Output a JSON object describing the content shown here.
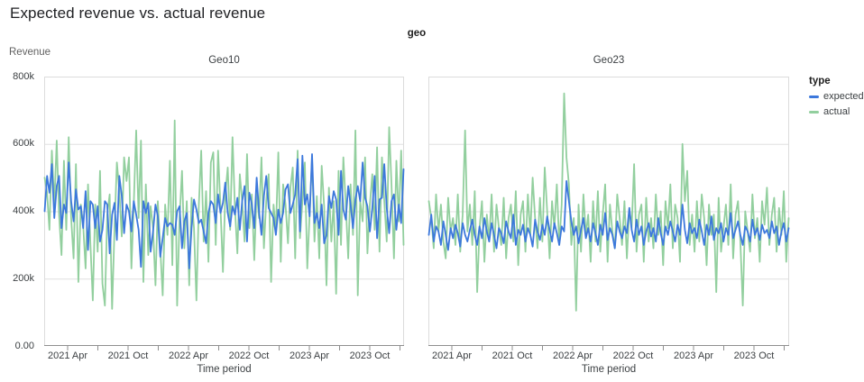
{
  "page": {
    "title": "Expected revenue vs. actual revenue"
  },
  "colors": {
    "expected": "#3c78dc",
    "actual": "#92cf9e",
    "grid": "#e0e0e0",
    "border": "#dcdcdc",
    "axis_line": "#8f8f8f",
    "tick_text": "#3c4043"
  },
  "chart_data": {
    "type": "line",
    "title": "Expected revenue vs. actual revenue",
    "facet_header": "geo",
    "legend_title": "type",
    "legend_position": "right",
    "grid": "horizontal",
    "series_meta": [
      {
        "name": "expected",
        "color": "#3c78dc"
      },
      {
        "name": "actual",
        "color": "#92cf9e"
      }
    ],
    "x": {
      "label": "Time period",
      "start": "2021 Jan",
      "end": "2023 Dec",
      "points_per_series": 150,
      "tick_labels": [
        "2021 Apr",
        "2021 Oct",
        "2022 Apr",
        "2022 Oct",
        "2023 Apr",
        "2023 Oct"
      ],
      "major_tick_months": [
        3,
        9,
        15,
        21,
        27,
        33
      ],
      "minor_tick_months": [
        6,
        12,
        18,
        24,
        30,
        36
      ]
    },
    "y": {
      "label": "Revenue",
      "unit": "thousands",
      "lim": [
        0,
        800
      ],
      "ticks": [
        {
          "v": 0,
          "label": "0.00"
        },
        {
          "v": 200,
          "label": "200k"
        },
        {
          "v": 400,
          "label": "400k"
        },
        {
          "v": 600,
          "label": "600k"
        },
        {
          "v": 800,
          "label": "800k"
        }
      ]
    },
    "facets": [
      {
        "name": "Geo10",
        "series": {
          "expected": [
            400,
            505,
            455,
            540,
            380,
            475,
            505,
            350,
            420,
            395,
            545,
            430,
            370,
            465,
            405,
            415,
            350,
            460,
            285,
            430,
            420,
            350,
            415,
            310,
            345,
            430,
            420,
            275,
            390,
            425,
            315,
            505,
            445,
            335,
            420,
            400,
            340,
            430,
            390,
            345,
            235,
            430,
            395,
            425,
            280,
            340,
            420,
            385,
            265,
            320,
            380,
            355,
            365,
            360,
            330,
            400,
            415,
            290,
            370,
            395,
            230,
            350,
            435,
            405,
            365,
            375,
            340,
            305,
            395,
            430,
            420,
            365,
            450,
            395,
            425,
            485,
            395,
            355,
            415,
            390,
            440,
            345,
            430,
            475,
            310,
            455,
            420,
            350,
            500,
            400,
            330,
            445,
            505,
            410,
            395,
            380,
            330,
            405,
            365,
            395,
            465,
            480,
            395,
            420,
            450,
            555,
            340,
            565,
            420,
            450,
            385,
            570,
            365,
            395,
            350,
            420,
            305,
            330,
            445,
            410,
            460,
            435,
            330,
            520,
            405,
            375,
            475,
            420,
            350,
            435,
            475,
            430,
            545,
            440,
            415,
            340,
            410,
            505,
            320,
            435,
            440,
            540,
            410,
            335,
            430,
            450,
            345,
            420,
            365,
            525
          ],
          "actual": [
            500,
            455,
            345,
            580,
            420,
            610,
            390,
            270,
            550,
            345,
            620,
            380,
            260,
            540,
            190,
            420,
            360,
            230,
            480,
            300,
            135,
            420,
            280,
            520,
            185,
            120,
            390,
            450,
            110,
            350,
            545,
            460,
            325,
            560,
            490,
            560,
            230,
            420,
            640,
            380,
            610,
            190,
            480,
            270,
            415,
            350,
            180,
            430,
            290,
            150,
            420,
            330,
            550,
            240,
            670,
            120,
            380,
            520,
            290,
            430,
            180,
            440,
            350,
            135,
            420,
            580,
            310,
            460,
            250,
            545,
            575,
            300,
            580,
            410,
            220,
            450,
            530,
            345,
            620,
            410,
            275,
            510,
            430,
            310,
            570,
            350,
            450,
            255,
            460,
            380,
            560,
            290,
            430,
            510,
            190,
            420,
            340,
            575,
            250,
            480,
            420,
            305,
            470,
            530,
            260,
            580,
            320,
            430,
            545,
            230,
            390,
            560,
            310,
            445,
            260,
            535,
            415,
            180,
            470,
            310,
            430,
            155,
            520,
            300,
            560,
            420,
            260,
            480,
            330,
            640,
            150,
            430,
            370,
            560,
            275,
            420,
            510,
            345,
            590,
            280,
            560,
            430,
            310,
            650,
            480,
            260,
            550,
            370,
            580,
            300
          ]
        }
      },
      {
        "name": "Geo23",
        "series": {
          "expected": [
            330,
            390,
            310,
            355,
            340,
            300,
            370,
            330,
            285,
            350,
            320,
            360,
            335,
            295,
            365,
            330,
            310,
            345,
            375,
            330,
            300,
            355,
            320,
            380,
            340,
            310,
            365,
            330,
            290,
            350,
            335,
            305,
            370,
            340,
            320,
            390,
            300,
            345,
            330,
            360,
            310,
            350,
            330,
            295,
            375,
            340,
            315,
            360,
            330,
            385,
            345,
            310,
            365,
            335,
            300,
            355,
            340,
            490,
            430,
            370,
            330,
            355,
            305,
            345,
            380,
            320,
            350,
            310,
            365,
            335,
            300,
            360,
            330,
            395,
            315,
            350,
            330,
            290,
            370,
            340,
            320,
            355,
            335,
            410,
            345,
            310,
            375,
            330,
            355,
            300,
            340,
            365,
            325,
            350,
            310,
            380,
            335,
            300,
            355,
            330,
            370,
            340,
            310,
            360,
            330,
            420,
            345,
            305,
            365,
            335,
            350,
            320,
            375,
            340,
            300,
            360,
            330,
            385,
            315,
            350,
            335,
            365,
            310,
            350,
            330,
            395,
            320,
            345,
            370,
            330,
            300,
            355,
            340,
            310,
            375,
            330,
            350,
            315,
            360,
            335,
            345,
            320,
            370,
            335,
            355,
            300,
            340,
            365,
            310,
            350
          ],
          "actual": [
            430,
            380,
            290,
            450,
            340,
            420,
            310,
            260,
            440,
            340,
            380,
            300,
            450,
            280,
            390,
            640,
            340,
            420,
            300,
            460,
            160,
            350,
            430,
            250,
            390,
            310,
            450,
            280,
            420,
            350,
            300,
            440,
            260,
            380,
            420,
            310,
            460,
            240,
            390,
            430,
            280,
            450,
            330,
            500,
            380,
            290,
            440,
            310,
            530,
            400,
            260,
            430,
            350,
            480,
            300,
            420,
            750,
            560,
            480,
            300,
            380,
            105,
            420,
            280,
            450,
            330,
            390,
            250,
            430,
            310,
            460,
            280,
            390,
            480,
            250,
            420,
            340,
            290,
            450,
            380,
            300,
            430,
            260,
            410,
            350,
            540,
            280,
            390,
            420,
            250,
            440,
            310,
            380,
            290,
            450,
            330,
            400,
            240,
            430,
            350,
            480,
            290,
            420,
            380,
            250,
            600,
            430,
            520,
            300,
            390,
            280,
            430,
            310,
            450,
            380,
            240,
            420,
            330,
            390,
            160,
            440,
            280,
            350,
            420,
            300,
            480,
            260,
            390,
            430,
            310,
            120,
            400,
            340,
            280,
            450,
            320,
            380,
            250,
            430,
            360,
            470,
            300,
            390,
            440,
            280,
            410,
            330,
            460,
            250,
            380
          ]
        }
      }
    ]
  }
}
